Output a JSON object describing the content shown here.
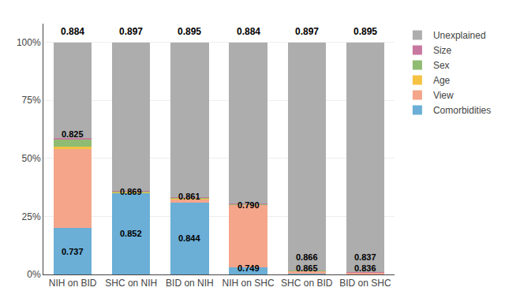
{
  "chart_data": {
    "type": "bar",
    "stacked": true,
    "categories": [
      "NIH on BID",
      "SHC on NIH",
      "BID on NIH",
      "NIH on SHC",
      "SHC on BID",
      "BID on SHC"
    ],
    "series": [
      {
        "name": "Comorbidities",
        "color": "#6BAED6",
        "values": [
          20.0,
          35.0,
          31.0,
          3.0,
          0.4,
          0.3
        ]
      },
      {
        "name": "View",
        "color": "#F4A58A",
        "values": [
          34.0,
          0.3,
          1.5,
          27.0,
          1.0,
          0.4
        ]
      },
      {
        "name": "Age",
        "color": "#F5C242",
        "values": [
          1.0,
          0.2,
          0.2,
          0.2,
          0.1,
          0.1
        ]
      },
      {
        "name": "Sex",
        "color": "#8FBC72",
        "values": [
          3.0,
          0.3,
          0.3,
          0.3,
          0.2,
          0.1
        ]
      },
      {
        "name": "Size",
        "color": "#C878A0",
        "values": [
          0.8,
          0.2,
          0.3,
          0.2,
          0.1,
          0.1
        ]
      },
      {
        "name": "Unexplained",
        "color": "#ADADAD",
        "values": [
          41.2,
          64.0,
          66.7,
          69.3,
          98.2,
          99.0
        ]
      }
    ],
    "ylim": [
      0,
      108
    ],
    "yticks": [
      {
        "value": 0,
        "label": "0%"
      },
      {
        "value": 25,
        "label": "25%"
      },
      {
        "value": 50,
        "label": "50%"
      },
      {
        "value": 75,
        "label": "75%"
      },
      {
        "value": 100,
        "label": "100%"
      }
    ],
    "grid": true,
    "legend": "right",
    "annotations": [
      {
        "text": "0.884",
        "x": "NIH on BID",
        "y": 101.5
      },
      {
        "text": "0.897",
        "x": "SHC on NIH",
        "y": 101.5
      },
      {
        "text": "0.895",
        "x": "BID on NIH",
        "y": 101.5
      },
      {
        "text": "0.884",
        "x": "NIH on SHC",
        "y": 101.5
      },
      {
        "text": "0.897",
        "x": "SHC on BID",
        "y": 101.5
      },
      {
        "text": "0.895",
        "x": "BID on SHC",
        "y": 101.5
      },
      {
        "text": "0.737",
        "x": "NIH on BID",
        "y": 10.0
      },
      {
        "text": "0.825",
        "x": "NIH on BID",
        "y": 60.5
      },
      {
        "text": "0.852",
        "x": "SHC on NIH",
        "y": 17.5
      },
      {
        "text": "0.869",
        "x": "SHC on NIH",
        "y": 35.5
      },
      {
        "text": "0.844",
        "x": "BID on NIH",
        "y": 15.5
      },
      {
        "text": "0.861",
        "x": "BID on NIH",
        "y": 33.5
      },
      {
        "text": "0.749",
        "x": "NIH on SHC",
        "y": 1.5
      },
      {
        "text": "0.790",
        "x": "NIH on SHC",
        "y": 30.0
      },
      {
        "text": "0.865",
        "x": "SHC on BID",
        "y": 0.2
      },
      {
        "text": "0.866",
        "x": "SHC on BID",
        "y": 1.2
      },
      {
        "text": "0.836",
        "x": "BID on SHC",
        "y": 0.15
      },
      {
        "text": "0.837",
        "x": "BID on SHC",
        "y": 0.5
      }
    ]
  }
}
